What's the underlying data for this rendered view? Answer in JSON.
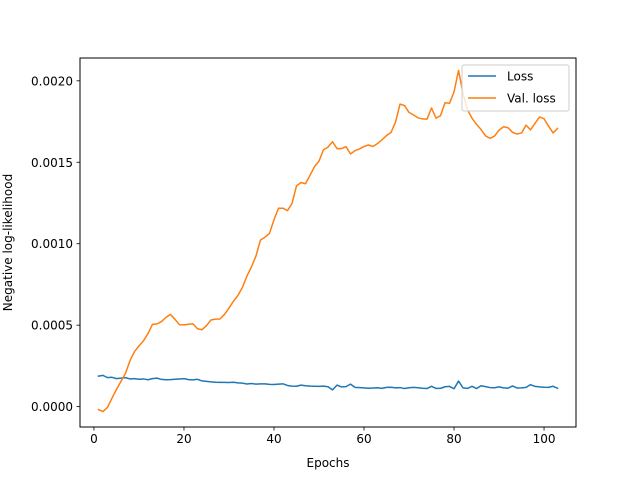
{
  "chart_data": {
    "type": "line",
    "title": "",
    "xlabel": "Epochs",
    "ylabel": "Negative log-likelihood",
    "xlim": [
      -3.1,
      107.1
    ],
    "ylim": [
      -0.000125,
      0.00214
    ],
    "xticks": [
      0,
      20,
      40,
      60,
      80,
      100
    ],
    "xtick_labels": [
      "0",
      "20",
      "40",
      "60",
      "80",
      "100"
    ],
    "yticks": [
      0.0,
      0.0005,
      0.001,
      0.0015,
      0.002
    ],
    "ytick_labels": [
      "0.0000",
      "0.0005",
      "0.0010",
      "0.0015",
      "0.0020"
    ],
    "grid": false,
    "legend_position": "top-right",
    "x": [
      1,
      2,
      3,
      4,
      5,
      6,
      7,
      8,
      9,
      10,
      11,
      12,
      13,
      14,
      15,
      16,
      17,
      18,
      19,
      20,
      21,
      22,
      23,
      24,
      25,
      26,
      27,
      28,
      29,
      30,
      31,
      32,
      33,
      34,
      35,
      36,
      37,
      38,
      39,
      40,
      41,
      42,
      43,
      44,
      45,
      46,
      47,
      48,
      49,
      50,
      51,
      52,
      53,
      54,
      55,
      56,
      57,
      58,
      59,
      60,
      61,
      62,
      63,
      64,
      65,
      66,
      67,
      68,
      69,
      70,
      71,
      72,
      73,
      74,
      75,
      76,
      77,
      78,
      79,
      80,
      81,
      82,
      83,
      84,
      85,
      86,
      87,
      88,
      89,
      90,
      91,
      92,
      93,
      94,
      95,
      96,
      97,
      98,
      99,
      100,
      101,
      102,
      103
    ],
    "series": [
      {
        "name": "Loss",
        "color": "#1f77b4",
        "values": [
          0.000187,
          0.000192,
          0.000178,
          0.00018,
          0.000172,
          0.000175,
          0.000178,
          0.00017,
          0.000172,
          0.000168,
          0.00017,
          0.000165,
          0.000172,
          0.000175,
          0.000167,
          0.000165,
          0.000166,
          0.000168,
          0.00017,
          0.000172,
          0.000166,
          0.000164,
          0.000168,
          0.000158,
          0.000155,
          0.000152,
          0.00015,
          0.000149,
          0.000149,
          0.000148,
          0.00015,
          0.000146,
          0.000144,
          0.000139,
          0.000142,
          0.000138,
          0.00014,
          0.00014,
          0.000137,
          0.000136,
          0.000138,
          0.00014,
          0.00013,
          0.000126,
          0.000125,
          0.000132,
          0.000128,
          0.000126,
          0.000125,
          0.000124,
          0.000126,
          0.000122,
          0.000103,
          0.000132,
          0.000121,
          0.000123,
          0.000138,
          0.000118,
          0.000117,
          0.000115,
          0.000113,
          0.000114,
          0.000116,
          0.000112,
          0.000118,
          0.000119,
          0.000115,
          0.000117,
          0.000111,
          0.000116,
          0.000118,
          0.000116,
          0.000113,
          0.000111,
          0.000125,
          0.000112,
          0.000112,
          0.000122,
          0.000124,
          0.00011,
          0.000157,
          0.000115,
          0.000112,
          0.000125,
          0.000111,
          0.000128,
          0.000123,
          0.000117,
          0.000116,
          0.000121,
          0.000115,
          0.000113,
          0.000127,
          0.000114,
          0.000115,
          0.000118,
          0.000135,
          0.000124,
          0.000121,
          0.000119,
          0.000118,
          0.000125,
          0.000113
        ]
      },
      {
        "name": "Val. loss",
        "color": "#ff7f0e",
        "values": [
          -1.8e-05,
          -3e-05,
          -5e-06,
          5.2e-05,
          0.000105,
          0.000155,
          0.000204,
          0.000282,
          0.000338,
          0.000372,
          0.000404,
          0.000448,
          0.000505,
          0.000508,
          0.000522,
          0.000548,
          0.000566,
          0.000536,
          0.000503,
          0.000502,
          0.000506,
          0.000508,
          0.000478,
          0.000472,
          0.000497,
          0.000532,
          0.000537,
          0.000538,
          0.000566,
          0.000605,
          0.000647,
          0.000683,
          0.000733,
          0.000802,
          0.000858,
          0.000925,
          0.001023,
          0.00104,
          0.001064,
          0.001147,
          0.001218,
          0.001218,
          0.001203,
          0.001247,
          0.001355,
          0.001376,
          0.001368,
          0.00142,
          0.001473,
          0.001507,
          0.001577,
          0.001593,
          0.001626,
          0.001584,
          0.001584,
          0.001596,
          0.001551,
          0.001571,
          0.001582,
          0.001597,
          0.001606,
          0.001597,
          0.001615,
          0.001638,
          0.001664,
          0.001683,
          0.001746,
          0.001857,
          0.001848,
          0.001806,
          0.00179,
          0.001773,
          0.001766,
          0.001765,
          0.001833,
          0.001771,
          0.001786,
          0.001865,
          0.001862,
          0.001932,
          0.002064,
          0.001921,
          0.001822,
          0.00177,
          0.001733,
          0.001701,
          0.001662,
          0.001647,
          0.001661,
          0.001697,
          0.001718,
          0.001712,
          0.001684,
          0.001673,
          0.00168,
          0.001728,
          0.001699,
          0.001739,
          0.001778,
          0.001767,
          0.001722,
          0.00168,
          0.001708
        ]
      }
    ]
  }
}
